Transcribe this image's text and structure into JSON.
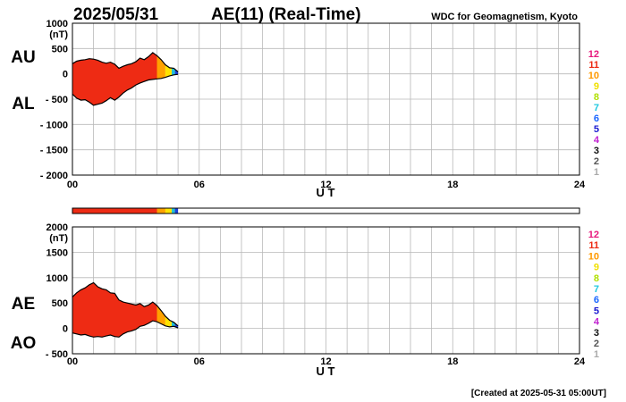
{
  "header": {
    "date": "2025/05/31",
    "title": "AE(11) (Real-Time)",
    "source": "WDC for Geomagnetism, Kyoto"
  },
  "footer": {
    "created": "[Created at 2025-05-31 05:00UT]"
  },
  "colors": {
    "fill_main": "#ee2b14",
    "fill_orange": "#ffa200",
    "fill_yellow": "#ffe400",
    "fill_green": "#2fc93a",
    "fill_cyan": "#22c0d4",
    "fill_blue": "#1c3fd8",
    "outline": "#000000",
    "grid": "#b8b8b8"
  },
  "chart_data": [
    {
      "type": "area",
      "name": "au-al-panel",
      "side_labels": [
        "AU",
        "AL"
      ],
      "y_unit": "(nT)",
      "ylim": [
        -2000,
        1000
      ],
      "yticks": [
        1000,
        500,
        0,
        -500,
        -1000,
        -1500,
        -2000
      ],
      "ytick_labels": [
        "1000",
        "500",
        "0",
        "- 500",
        "- 1000",
        "- 1500",
        "- 2000"
      ],
      "xlim": [
        0,
        24
      ],
      "xticks": [
        0,
        6,
        12,
        18,
        24
      ],
      "xtick_labels": [
        "00",
        "06",
        "12",
        "18",
        "24"
      ],
      "xlabel": "U T",
      "grid": true,
      "legend_position": "right",
      "legend_entries": [
        {
          "label": "12",
          "color": "#e8177d"
        },
        {
          "label": "11",
          "color": "#ee2b14"
        },
        {
          "label": "10",
          "color": "#ff9900"
        },
        {
          "label": "9",
          "color": "#f0e000"
        },
        {
          "label": "8",
          "color": "#b0e000"
        },
        {
          "label": "7",
          "color": "#20c8e0"
        },
        {
          "label": "6",
          "color": "#1a66ff"
        },
        {
          "label": "5",
          "color": "#1a1ad0"
        },
        {
          "label": "4",
          "color": "#c020d0"
        },
        {
          "label": "3",
          "color": "#111111"
        },
        {
          "label": "2",
          "color": "#555555"
        },
        {
          "label": "1",
          "color": "#aaaaaa"
        }
      ],
      "station_segments": [
        {
          "from": 0,
          "to": 4.0,
          "stations": 11
        },
        {
          "from": 4.0,
          "to": 4.4,
          "stations": 10
        },
        {
          "from": 4.4,
          "to": 4.7,
          "stations": 9
        },
        {
          "from": 4.7,
          "to": 4.85,
          "stations": 7
        },
        {
          "from": 4.85,
          "to": 5.0,
          "stations": 6
        }
      ],
      "series": [
        {
          "name": "AU",
          "x": [
            0,
            0.2,
            0.4,
            0.6,
            0.8,
            1.0,
            1.2,
            1.4,
            1.6,
            1.8,
            2.0,
            2.2,
            2.4,
            2.6,
            2.8,
            3.0,
            3.2,
            3.4,
            3.6,
            3.8,
            4.0,
            4.2,
            4.4,
            4.6,
            4.8,
            5.0
          ],
          "values": [
            200,
            250,
            270,
            280,
            300,
            290,
            270,
            230,
            210,
            230,
            190,
            110,
            150,
            180,
            200,
            240,
            310,
            280,
            340,
            420,
            360,
            280,
            180,
            120,
            110,
            40
          ]
        },
        {
          "name": "AL",
          "x": [
            0,
            0.2,
            0.4,
            0.6,
            0.8,
            1.0,
            1.2,
            1.4,
            1.6,
            1.8,
            2.0,
            2.2,
            2.4,
            2.6,
            2.8,
            3.0,
            3.2,
            3.4,
            3.6,
            3.8,
            4.0,
            4.2,
            4.4,
            4.6,
            4.8,
            5.0
          ],
          "values": [
            -400,
            -480,
            -520,
            -510,
            -560,
            -620,
            -600,
            -580,
            -530,
            -470,
            -520,
            -460,
            -380,
            -320,
            -280,
            -220,
            -180,
            -150,
            -120,
            -110,
            -100,
            -90,
            -70,
            -40,
            -20,
            -10
          ]
        }
      ]
    },
    {
      "type": "area",
      "name": "ae-ao-panel",
      "side_labels": [
        "AE",
        "AO"
      ],
      "y_unit": "(nT)",
      "ylim": [
        -500,
        2000
      ],
      "yticks": [
        2000,
        1500,
        1000,
        500,
        0,
        -500
      ],
      "ytick_labels": [
        "2000",
        "1500",
        "1000",
        "500",
        "0",
        "- 500"
      ],
      "xlim": [
        0,
        24
      ],
      "xticks": [
        0,
        6,
        12,
        18,
        24
      ],
      "xtick_labels": [
        "00",
        "06",
        "12",
        "18",
        "24"
      ],
      "xlabel": "U T",
      "grid": true,
      "legend_position": "right",
      "series": [
        {
          "name": "AE",
          "x": [
            0,
            0.2,
            0.4,
            0.6,
            0.8,
            1.0,
            1.2,
            1.4,
            1.6,
            1.8,
            2.0,
            2.2,
            2.4,
            2.6,
            2.8,
            3.0,
            3.2,
            3.4,
            3.6,
            3.8,
            4.0,
            4.2,
            4.4,
            4.6,
            4.8,
            5.0
          ],
          "values": [
            620,
            700,
            760,
            800,
            860,
            900,
            820,
            780,
            760,
            700,
            690,
            560,
            520,
            500,
            480,
            460,
            490,
            430,
            460,
            520,
            450,
            350,
            240,
            160,
            120,
            50
          ]
        },
        {
          "name": "AO",
          "x": [
            0,
            0.2,
            0.4,
            0.6,
            0.8,
            1.0,
            1.2,
            1.4,
            1.6,
            1.8,
            2.0,
            2.2,
            2.4,
            2.6,
            2.8,
            3.0,
            3.2,
            3.4,
            3.6,
            3.8,
            4.0,
            4.2,
            4.4,
            4.6,
            4.8,
            5.0
          ],
          "values": [
            -90,
            -110,
            -130,
            -120,
            -150,
            -170,
            -160,
            -170,
            -150,
            -130,
            -160,
            -170,
            -110,
            -70,
            -50,
            -20,
            40,
            60,
            100,
            150,
            130,
            90,
            50,
            30,
            40,
            10
          ]
        }
      ]
    }
  ]
}
